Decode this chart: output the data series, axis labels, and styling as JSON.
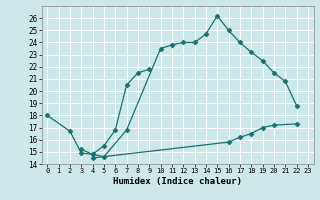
{
  "line1_x": [
    0,
    2,
    3,
    4,
    5,
    7,
    10,
    11,
    12,
    13,
    14,
    15,
    16,
    17,
    18,
    19,
    20,
    21,
    22
  ],
  "line1_y": [
    18.0,
    16.7,
    14.9,
    14.8,
    14.6,
    16.8,
    23.5,
    23.8,
    24.0,
    24.0,
    24.7,
    26.2,
    25.0,
    24.0,
    23.2,
    22.5,
    21.5,
    20.8,
    18.8
  ],
  "line2_x": [
    3,
    4,
    5,
    6,
    7,
    8,
    9
  ],
  "line2_y": [
    15.2,
    14.8,
    15.5,
    16.8,
    20.5,
    21.5,
    21.8
  ],
  "line3_x": [
    4,
    16,
    17,
    18,
    19,
    20,
    22
  ],
  "line3_y": [
    14.5,
    15.8,
    16.2,
    16.5,
    17.0,
    17.2,
    17.3
  ],
  "bg_color": "#cce8e8",
  "line_color": "#1a7070",
  "xlabel": "Humidex (Indice chaleur)",
  "ylim": [
    14,
    27
  ],
  "xlim": [
    -0.5,
    23.5
  ],
  "yticks": [
    14,
    15,
    16,
    17,
    18,
    19,
    20,
    21,
    22,
    23,
    24,
    25,
    26
  ],
  "xticks": [
    0,
    1,
    2,
    3,
    4,
    5,
    6,
    7,
    8,
    9,
    10,
    11,
    12,
    13,
    14,
    15,
    16,
    17,
    18,
    19,
    20,
    21,
    22,
    23
  ],
  "grid_color": "#ffffff",
  "marker": "D",
  "markersize": 2.5,
  "linewidth": 0.9
}
